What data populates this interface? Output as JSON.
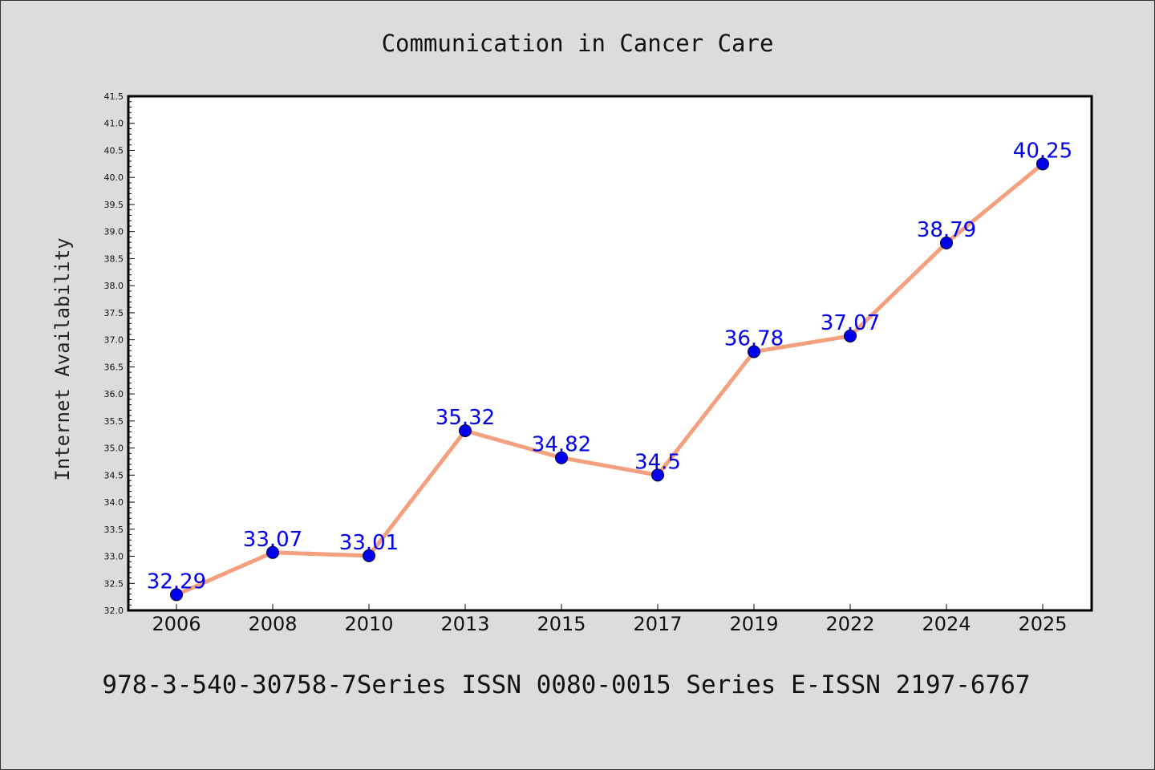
{
  "chart_data": {
    "type": "line",
    "title": "Communication in Cancer Care",
    "xlabel": "",
    "ylabel": "Internet Availability",
    "categories": [
      "2006",
      "2008",
      "2010",
      "2013",
      "2015",
      "2017",
      "2019",
      "2022",
      "2024",
      "2025"
    ],
    "series": [
      {
        "values": [
          32.29,
          33.07,
          33.01,
          35.32,
          34.82,
          34.5,
          36.78,
          37.07,
          38.79,
          40.25
        ],
        "data_labels": [
          "32.29",
          "33.07",
          "33.01",
          "35.32",
          "34.82",
          "34.5",
          "36.78",
          "37.07",
          "38.79",
          "40.25"
        ],
        "line_color": "#f4a07f",
        "marker_color": "#0000ee",
        "label_color": "#0000ee"
      }
    ],
    "ylim": [
      32.0,
      41.5
    ],
    "yticks": [
      "32.0",
      "32.5",
      "33.0",
      "33.5",
      "34.0",
      "34.5",
      "35.0",
      "35.5",
      "36.0",
      "36.5",
      "37.0",
      "37.5",
      "38.0",
      "38.5",
      "39.0",
      "39.5",
      "40.0",
      "40.5",
      "41.0",
      "41.5"
    ],
    "grid": false,
    "legend": "none"
  },
  "footer": "978-3-540-30758-7Series ISSN 0080-0015 Series E-ISSN 2197-6767",
  "colors": {
    "background": "#dcdcdc",
    "plot_background": "#ffffff",
    "axis": "#000000"
  }
}
